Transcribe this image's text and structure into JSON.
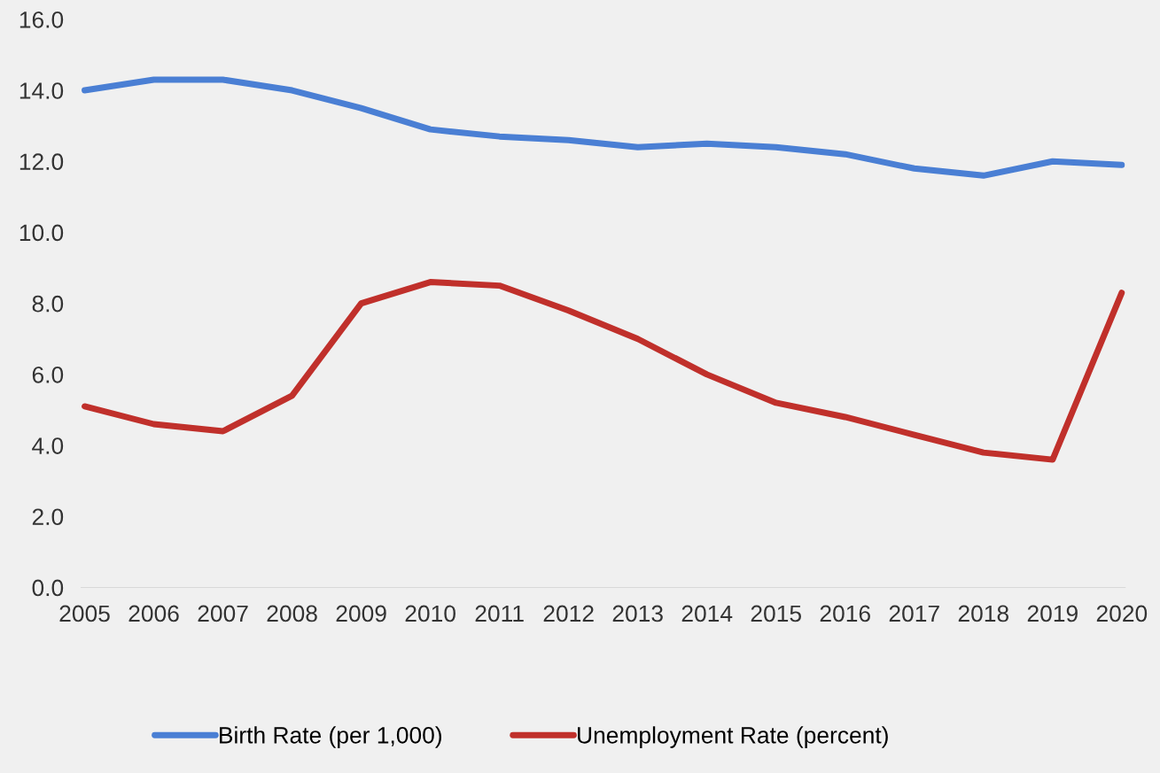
{
  "chart_data": {
    "type": "line",
    "categories": [
      "2005",
      "2006",
      "2007",
      "2008",
      "2009",
      "2010",
      "2011",
      "2012",
      "2013",
      "2014",
      "2015",
      "2016",
      "2017",
      "2018",
      "2019",
      "2020"
    ],
    "series": [
      {
        "name": "Birth Rate (per 1,000)",
        "color": "#4a7fd4",
        "values": [
          14.0,
          14.3,
          14.3,
          14.0,
          13.5,
          12.9,
          12.7,
          12.6,
          12.4,
          12.5,
          12.4,
          12.2,
          11.8,
          11.6,
          12.0,
          11.9
        ]
      },
      {
        "name": "Unemployment Rate (percent)",
        "color": "#c0302b",
        "values": [
          5.1,
          4.6,
          4.4,
          5.4,
          8.0,
          8.6,
          8.5,
          7.8,
          7.0,
          6.0,
          5.2,
          4.8,
          4.3,
          3.8,
          3.6,
          8.3
        ]
      }
    ],
    "ylim": [
      0,
      16
    ],
    "yticks": [
      {
        "value": 0,
        "label": "0.0"
      },
      {
        "value": 2,
        "label": "2.0"
      },
      {
        "value": 4,
        "label": "4.0"
      },
      {
        "value": 6,
        "label": "6.0"
      },
      {
        "value": 8,
        "label": "8.0"
      },
      {
        "value": 10,
        "label": "10.0"
      },
      {
        "value": 12,
        "label": "12.0"
      },
      {
        "value": 14,
        "label": "14.0"
      },
      {
        "value": 16,
        "label": "16.0"
      }
    ],
    "grid": false,
    "legend": "bottom",
    "marker": "none",
    "line_style": "solid"
  }
}
